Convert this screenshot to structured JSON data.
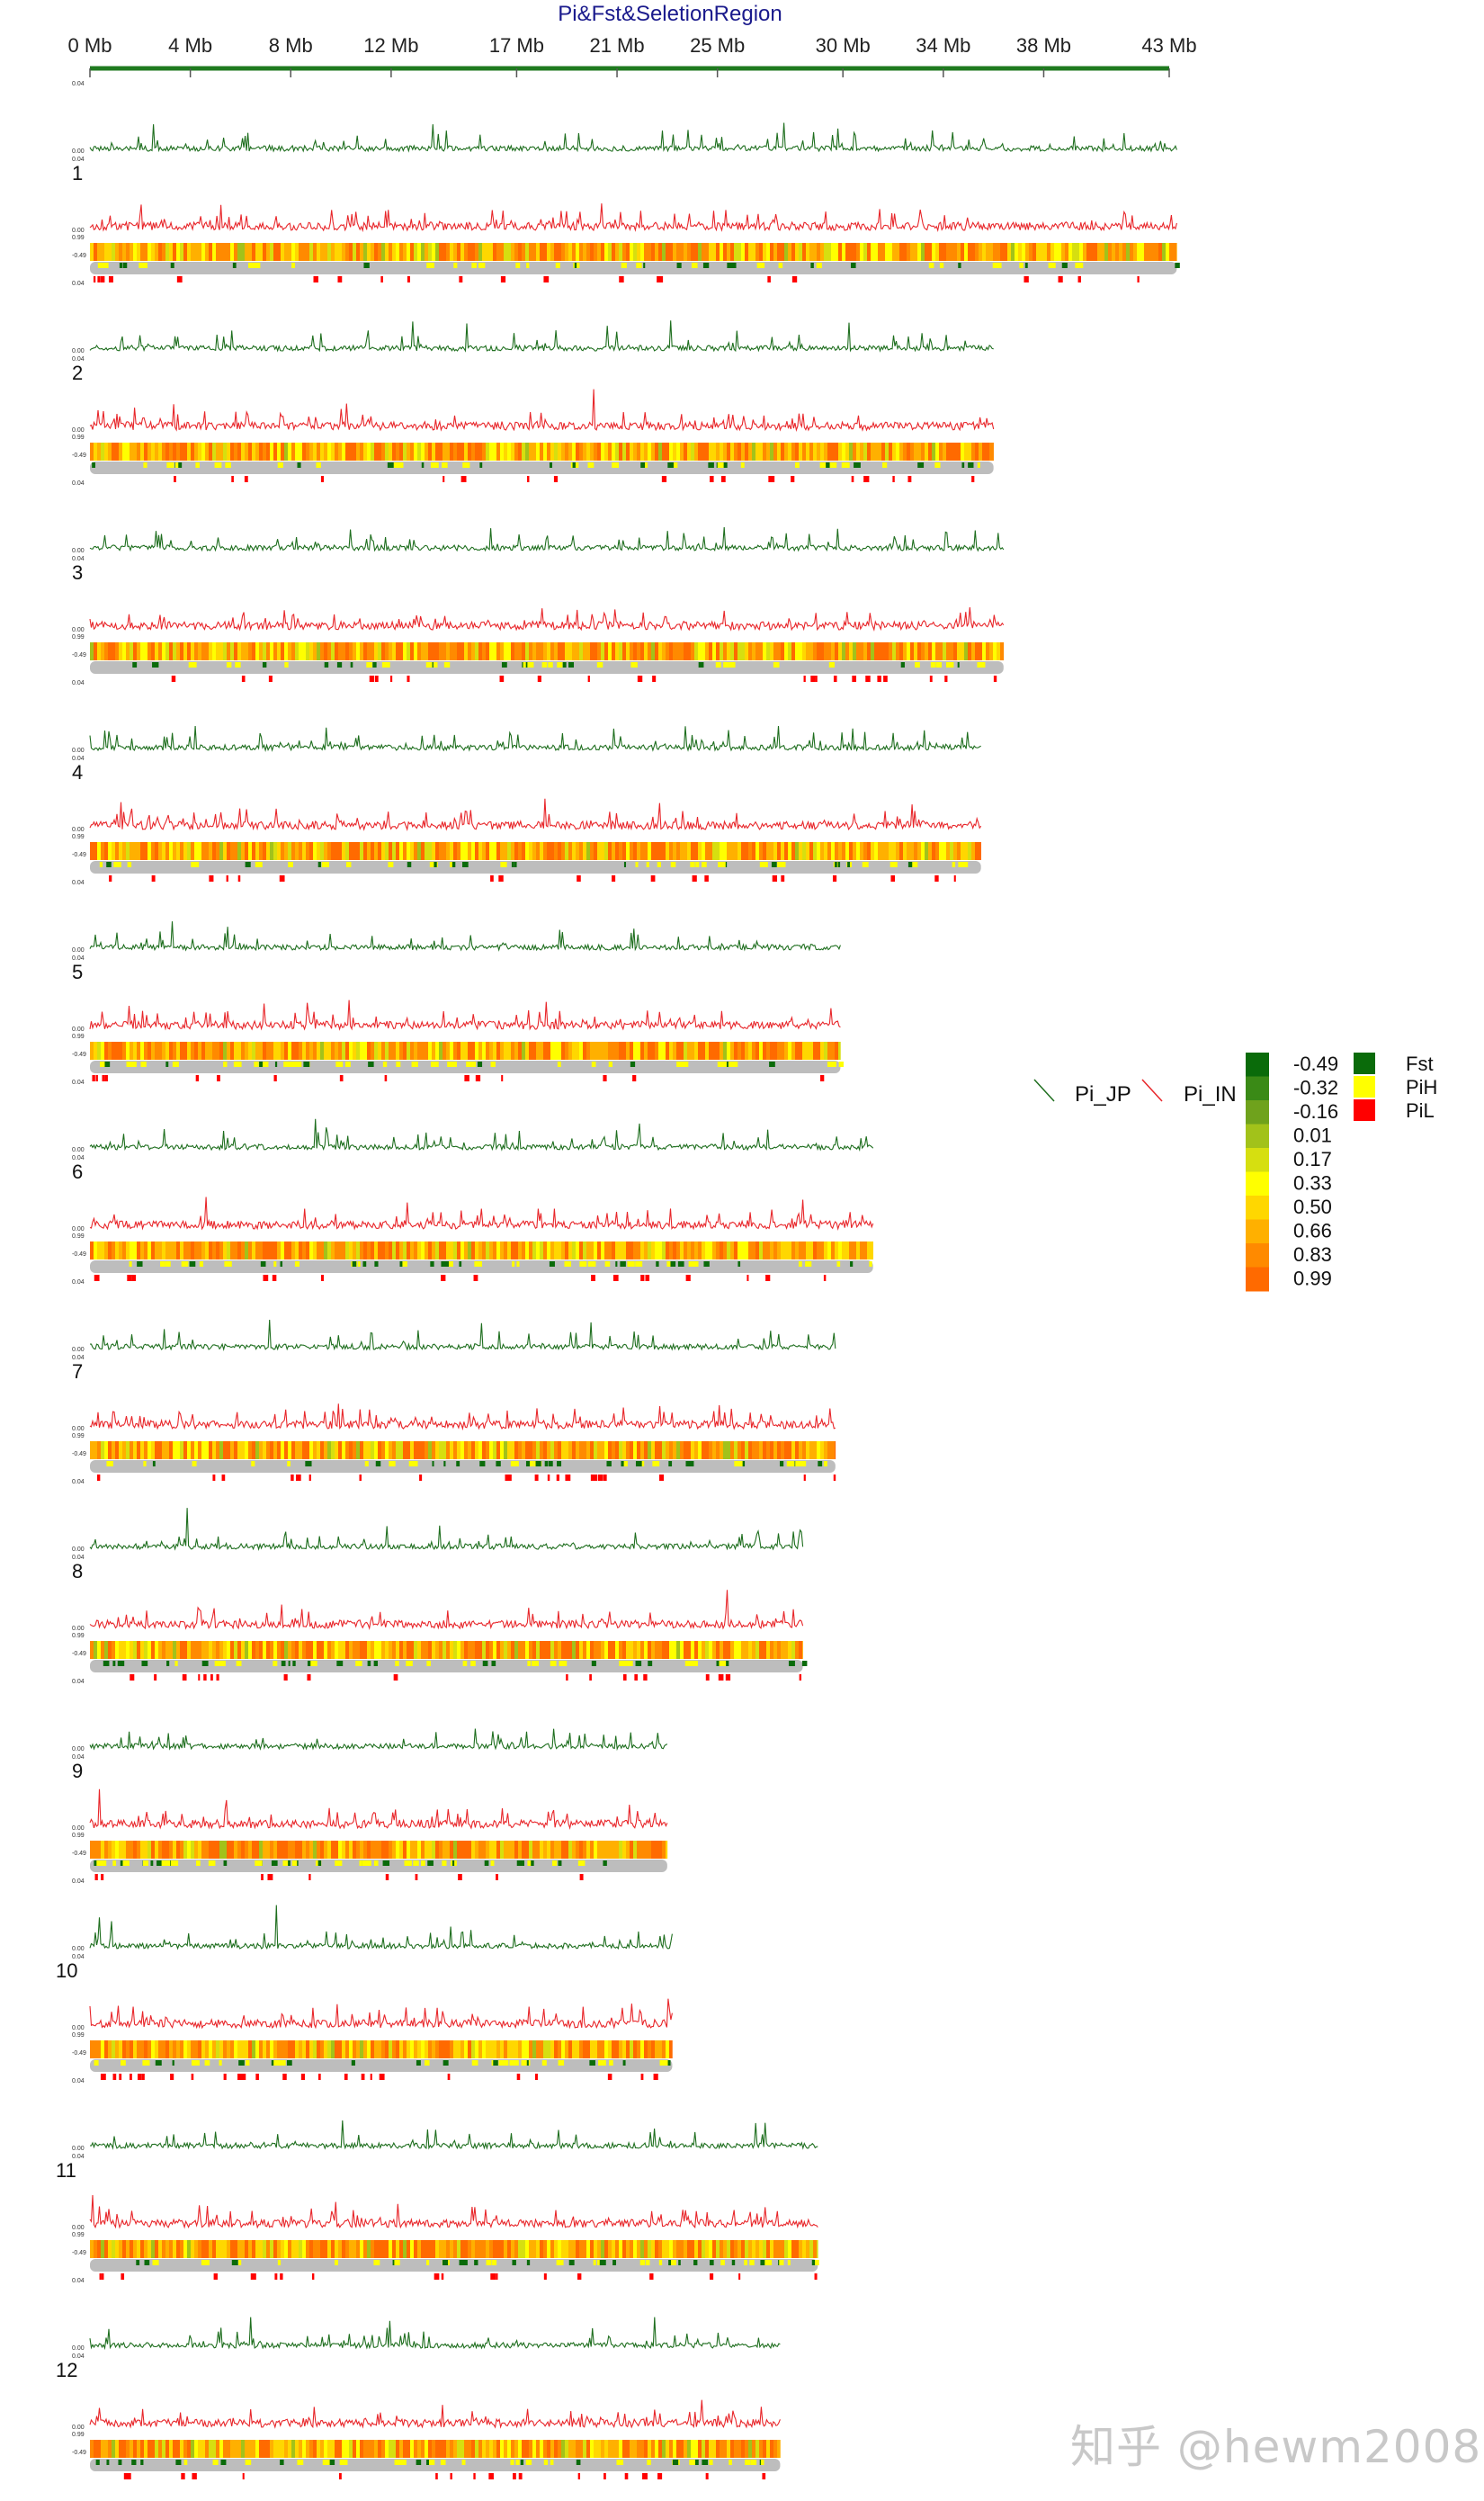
{
  "chart_data": {
    "type": "line",
    "title": "Pi&Fst&SeletionRegion",
    "x_unit": "Mb",
    "x_ticks": [
      "0 Mb",
      "4 Mb",
      "8 Mb",
      "12 Mb",
      "17 Mb",
      "21 Mb",
      "25 Mb",
      "30 Mb",
      "34 Mb",
      "38 Mb",
      "43 Mb"
    ],
    "x_tick_values": [
      0,
      4,
      8,
      12,
      17,
      21,
      25,
      30,
      34,
      38,
      43
    ],
    "axis_labels": {
      "pi_top": "0.04",
      "pi_zero": "0.00",
      "fst_top": "0.99",
      "fst_bottom": "-0.49"
    },
    "series": [
      {
        "name": "Pi_JP",
        "color": "#1e6e1e"
      },
      {
        "name": "Pi_IN",
        "color": "#e8262a"
      }
    ],
    "chromosomes": [
      {
        "label": "1",
        "length_mb": 43.3
      },
      {
        "label": "2",
        "length_mb": 36.0
      },
      {
        "label": "3",
        "length_mb": 36.4
      },
      {
        "label": "4",
        "length_mb": 35.5
      },
      {
        "label": "5",
        "length_mb": 29.9
      },
      {
        "label": "6",
        "length_mb": 31.2
      },
      {
        "label": "7",
        "length_mb": 29.7
      },
      {
        "label": "8",
        "length_mb": 28.4
      },
      {
        "label": "9",
        "length_mb": 23.0
      },
      {
        "label": "10",
        "length_mb": 23.2
      },
      {
        "label": "11",
        "length_mb": 29.0
      },
      {
        "label": "12",
        "length_mb": 27.5
      }
    ],
    "fst_scale": {
      "values": [
        "-0.49",
        "-0.32",
        "-0.16",
        "0.01",
        "0.17",
        "0.33",
        "0.50",
        "0.66",
        "0.83",
        "0.99"
      ],
      "colors": [
        "#0a6b0a",
        "#3a8a16",
        "#6fa21c",
        "#a2c21a",
        "#d6df10",
        "#ffff00",
        "#ffd700",
        "#ffb000",
        "#ff8a00",
        "#ff6a00"
      ]
    },
    "region_legend": [
      {
        "label": "Fst",
        "color": "#0a6b0a"
      },
      {
        "label": "PiH",
        "color": "#ffff00"
      },
      {
        "label": "PiL",
        "color": "#ff0000"
      }
    ]
  },
  "watermark": "知乎 @hewm2008"
}
